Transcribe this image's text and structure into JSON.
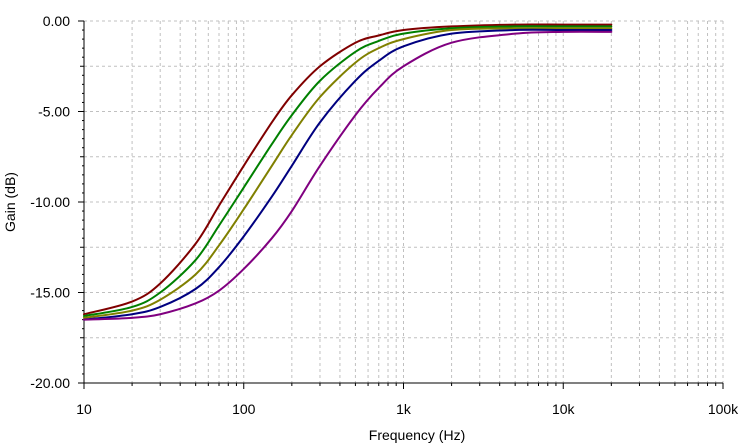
{
  "chart_data": {
    "type": "line",
    "xlabel": "Frequency (Hz)",
    "ylabel": "Gain (dB)",
    "x_scale": "log",
    "xlim": [
      10,
      100000
    ],
    "ylim": [
      -20,
      0
    ],
    "x_ticks": [
      10,
      100,
      1000,
      10000,
      100000
    ],
    "x_tick_labels": [
      "10",
      "100",
      "1k",
      "10k",
      "100k"
    ],
    "y_ticks": [
      0,
      -5,
      -10,
      -15,
      -20
    ],
    "y_tick_labels": [
      "0.00",
      "-5.00",
      "-10.00",
      "-15.00",
      "-20.00"
    ],
    "grid": true,
    "legend": "none",
    "x": [
      10,
      20,
      30,
      50,
      70,
      100,
      150,
      200,
      300,
      500,
      700,
      1000,
      2000,
      5000,
      10000,
      20000
    ],
    "series": [
      {
        "color": "#800000",
        "values": [
          -16.2,
          -15.5,
          -14.5,
          -12.3,
          -10.2,
          -8.0,
          -5.6,
          -4.1,
          -2.5,
          -1.2,
          -0.8,
          -0.5,
          -0.3,
          -0.2,
          -0.2,
          -0.2
        ]
      },
      {
        "color": "#008000",
        "values": [
          -16.3,
          -15.8,
          -15.0,
          -13.2,
          -11.3,
          -9.2,
          -6.8,
          -5.2,
          -3.3,
          -1.7,
          -1.1,
          -0.7,
          -0.4,
          -0.3,
          -0.3,
          -0.3
        ]
      },
      {
        "color": "#808000",
        "values": [
          -16.4,
          -16.0,
          -15.4,
          -14.0,
          -12.4,
          -10.4,
          -8.0,
          -6.3,
          -4.2,
          -2.3,
          -1.5,
          -1.0,
          -0.5,
          -0.4,
          -0.4,
          -0.4
        ]
      },
      {
        "color": "#000080",
        "values": [
          -16.5,
          -16.2,
          -15.8,
          -14.8,
          -13.6,
          -11.9,
          -9.7,
          -8.0,
          -5.6,
          -3.3,
          -2.2,
          -1.4,
          -0.7,
          -0.5,
          -0.5,
          -0.5
        ]
      },
      {
        "color": "#800080",
        "values": [
          -16.5,
          -16.4,
          -16.2,
          -15.6,
          -14.9,
          -13.7,
          -12.0,
          -10.5,
          -8.0,
          -5.2,
          -3.7,
          -2.5,
          -1.2,
          -0.7,
          -0.6,
          -0.6
        ]
      }
    ]
  }
}
